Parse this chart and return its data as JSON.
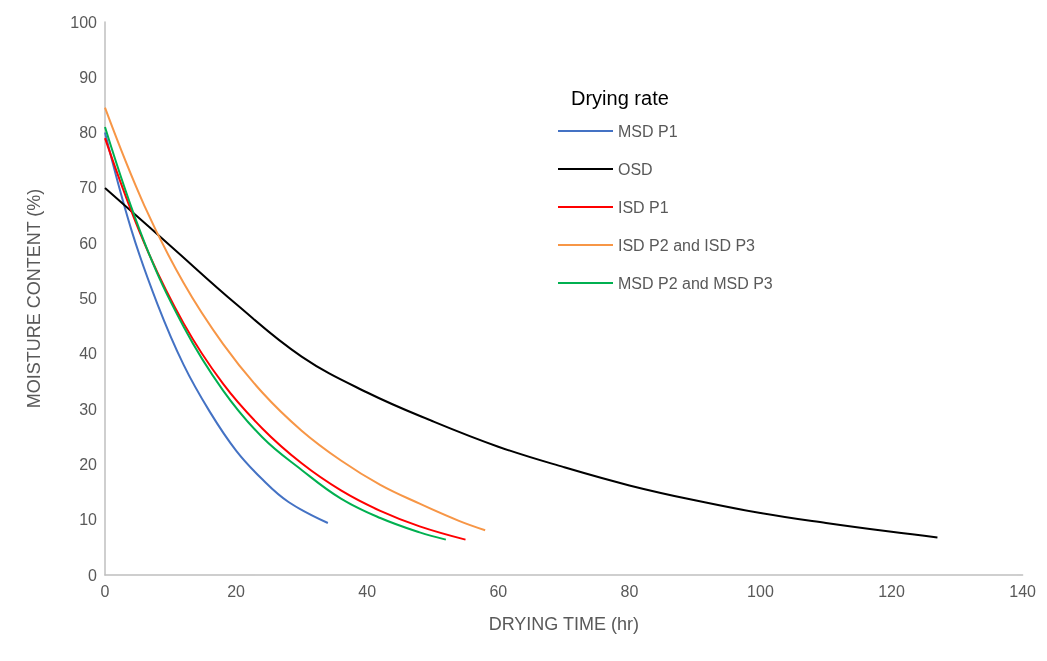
{
  "chart_data": {
    "type": "line",
    "xlabel": "DRYING TIME (hr)",
    "ylabel": "MOISTURE CONTENT (%)",
    "legend_title": "Drying rate",
    "legend": "top right",
    "grid": false,
    "marker": "none",
    "line_style": "solid",
    "xlim": [
      0,
      140
    ],
    "xticks": [
      0,
      20,
      40,
      60,
      80,
      100,
      120,
      140
    ],
    "ylim": [
      0,
      100
    ],
    "yticks": [
      0,
      10,
      20,
      30,
      40,
      50,
      60,
      70,
      80,
      90,
      100
    ],
    "series": [
      {
        "name": "MSD P1",
        "color": "#4472c4",
        "x": [
          0,
          4,
          8,
          12,
          16,
          20,
          24,
          28,
          34
        ],
        "values": [
          80,
          62.5,
          49,
          38,
          29.5,
          22.5,
          17.3,
          13.2,
          9.4
        ]
      },
      {
        "name": "OSD",
        "color": "#000000",
        "x": [
          0,
          10,
          20,
          30,
          40,
          50,
          60,
          70,
          80,
          90,
          100,
          110,
          120,
          127
        ],
        "values": [
          70,
          59.5,
          49,
          39.5,
          33,
          27.8,
          23.2,
          19.5,
          16.2,
          13.5,
          11.2,
          9.4,
          7.8,
          6.8
        ]
      },
      {
        "name": "ISD P1",
        "color": "#ff0000",
        "x": [
          0,
          6,
          12,
          18,
          24,
          30,
          36,
          42,
          48,
          55
        ],
        "values": [
          79,
          60,
          45.5,
          34.6,
          26.5,
          20.2,
          15.3,
          11.6,
          8.8,
          6.4
        ]
      },
      {
        "name": "ISD P2 and ISD P3",
        "color": "#f79646",
        "x": [
          0,
          6,
          12,
          18,
          24,
          30,
          36,
          42,
          48,
          54,
          58
        ],
        "values": [
          84.5,
          66.8,
          52.8,
          41.8,
          33,
          26.1,
          20.7,
          16.3,
          12.9,
          9.8,
          8.1
        ]
      },
      {
        "name": "MSD P2 and MSD P3",
        "color": "#00b050",
        "x": [
          0,
          6,
          12,
          18,
          24,
          30,
          36,
          42,
          48,
          52
        ],
        "values": [
          81,
          60.2,
          44.9,
          33.4,
          24.9,
          19,
          13.8,
          10.3,
          7.7,
          6.4
        ]
      }
    ]
  }
}
